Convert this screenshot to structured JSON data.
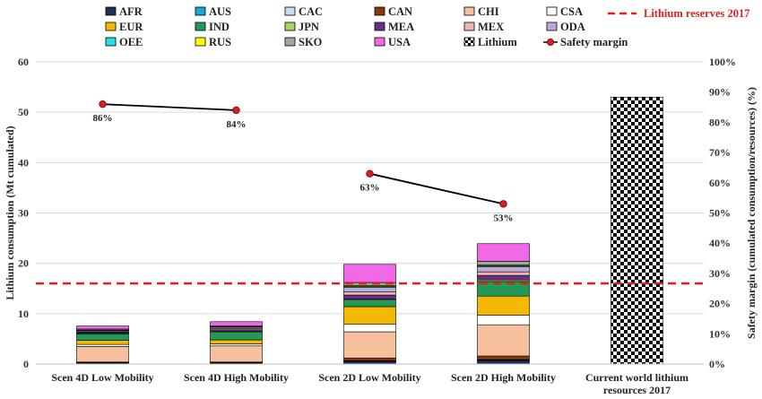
{
  "chart_data": {
    "type": "bar",
    "subtype": "stacked-bar with line overlay",
    "categories": [
      "Scen 4D Low Mobility",
      "Scen 4D High Mobility",
      "Scen 2D Low Mobility",
      "Scen 2D High Mobility",
      "Current world lithium resources 2017"
    ],
    "category_lines": [
      [
        "Scen 4D Low Mobility"
      ],
      [
        "Scen 4D High Mobility"
      ],
      [
        "Scen 2D Low Mobility"
      ],
      [
        "Scen 2D High Mobility"
      ],
      [
        "Current world lithium",
        "resources 2017"
      ]
    ],
    "ylabel": "Lithium consumption (Mt cumulated)",
    "ylim": [
      0,
      60
    ],
    "y_ticks": [
      0,
      10,
      20,
      30,
      40,
      50,
      60
    ],
    "y2label": "Safety margin (cumulated consumption/resources) (%)",
    "y2lim": [
      0,
      100
    ],
    "y2_ticks": [
      "0%",
      "10%",
      "20%",
      "30%",
      "40%",
      "50%",
      "60%",
      "70%",
      "80%",
      "90%",
      "100%"
    ],
    "grid": true,
    "series": [
      {
        "name": "AFR",
        "color": "#1f2f5c",
        "values": [
          0.2,
          0.2,
          0.5,
          0.7,
          0
        ]
      },
      {
        "name": "AUS",
        "color": "#1ca3d9",
        "values": [
          0.05,
          0.05,
          0.1,
          0.1,
          0
        ]
      },
      {
        "name": "CAC",
        "color": "#c5e1ef",
        "values": [
          0.05,
          0.05,
          0.1,
          0.1,
          0
        ]
      },
      {
        "name": "CAN",
        "color": "#8b3a0e",
        "values": [
          0.1,
          0.1,
          0.5,
          0.7,
          0
        ]
      },
      {
        "name": "CHI",
        "color": "#f7c09d",
        "values": [
          3.1,
          3.2,
          5.2,
          6.2,
          0
        ]
      },
      {
        "name": "CSA",
        "color": "#ffffff",
        "values": [
          0.4,
          0.4,
          1.5,
          1.9,
          0
        ]
      },
      {
        "name": "EUR",
        "color": "#f5b800",
        "values": [
          0.8,
          0.8,
          3.5,
          3.8,
          0
        ]
      },
      {
        "name": "IND",
        "color": "#229954",
        "values": [
          1.3,
          1.5,
          1.3,
          2.9,
          0
        ]
      },
      {
        "name": "JPN",
        "color": "#a8d26a",
        "values": [
          0.15,
          0.2,
          0.2,
          0.3,
          0
        ]
      },
      {
        "name": "MEA",
        "color": "#6a2e8c",
        "values": [
          0.2,
          0.3,
          0.8,
          0.9,
          0
        ]
      },
      {
        "name": "MEX",
        "color": "#eeb4ae",
        "values": [
          0.1,
          0.2,
          0.6,
          0.7,
          0
        ]
      },
      {
        "name": "ODA",
        "color": "#bcaad6",
        "values": [
          0.2,
          0.3,
          0.9,
          1.0,
          0
        ]
      },
      {
        "name": "OEE",
        "color": "#22e0e8",
        "values": [
          0.05,
          0.05,
          0.2,
          0.2,
          0
        ]
      },
      {
        "name": "RUS",
        "color": "#ffff00",
        "values": [
          0.05,
          0.05,
          0.2,
          0.2,
          0
        ]
      },
      {
        "name": "SKO",
        "color": "#a5a5a5",
        "values": [
          0.2,
          0.2,
          0.6,
          0.7,
          0
        ]
      },
      {
        "name": "USA",
        "color": "#f268e8",
        "values": [
          0.6,
          0.8,
          3.6,
          3.5,
          0
        ]
      },
      {
        "name": "Lithium",
        "pattern": "checker",
        "color": "#000000",
        "values": [
          0,
          0,
          0,
          0,
          53
        ]
      }
    ],
    "line_series": {
      "name": "Safety margin",
      "color": "#000000",
      "marker_color": "#d62020",
      "axis": "right",
      "values": [
        86,
        84,
        63,
        53
      ],
      "labels": [
        "86%",
        "84%",
        "63%",
        "53%"
      ],
      "segments": [
        [
          0,
          1
        ],
        [
          2,
          3
        ]
      ]
    },
    "reference_line": {
      "name": "Lithium  reserves 2017",
      "value": 16,
      "color": "#e02020"
    },
    "legend": {
      "placement": "top",
      "columns": [
        [
          "AFR",
          "EUR",
          "OEE"
        ],
        [
          "AUS",
          "IND",
          "RUS"
        ],
        [
          "CAC",
          "JPN",
          "SKO"
        ],
        [
          "CAN",
          "MEA",
          "USA"
        ],
        [
          "CHI",
          "MEX",
          "Lithium"
        ],
        [
          "CSA",
          "ODA",
          "Safety margin"
        ]
      ]
    }
  }
}
